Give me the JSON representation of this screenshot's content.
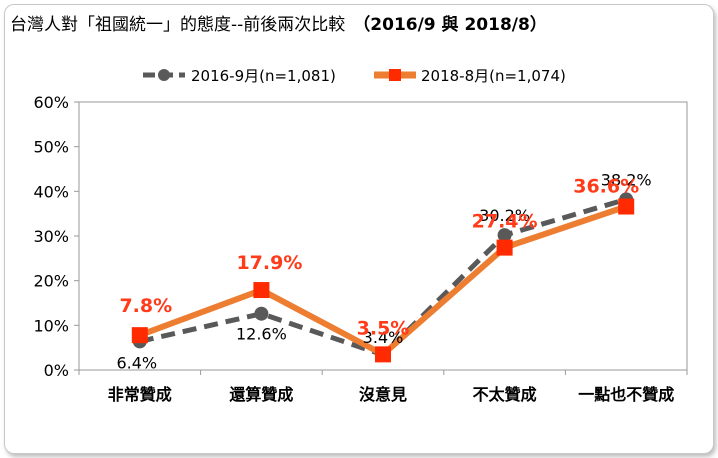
{
  "title": "台灣人對「祖國統一」的態度--前後兩次比較",
  "subtitle": "（2016/9 與 2018/8）",
  "chart_data": {
    "type": "line",
    "categories": [
      "非常贊成",
      "還算贊成",
      "沒意見",
      "不太贊成",
      "一點也不贊成"
    ],
    "ylim": [
      0,
      60
    ],
    "yticks": [
      "0%",
      "10%",
      "20%",
      "30%",
      "40%",
      "50%",
      "60%"
    ],
    "grid": false,
    "legend_position": "top",
    "series": [
      {
        "name": "2016-9月(n=1,081)",
        "values": [
          6.4,
          12.6,
          3.4,
          30.2,
          38.2
        ],
        "labels": [
          "6.4%",
          "12.6%",
          "3.4%",
          "30.2%",
          "38.2%"
        ],
        "color": "#595959",
        "style": "dashed",
        "marker": "circle"
      },
      {
        "name": "2018-8月(n=1,074)",
        "values": [
          7.8,
          17.9,
          3.5,
          27.4,
          36.6
        ],
        "labels": [
          "7.8%",
          "17.9%",
          "3.5%",
          "27.4%",
          "36.6%"
        ],
        "color": "#ed7d31",
        "marker_color": "#ff2a00",
        "label_color": "#ff3b1a",
        "style": "solid",
        "marker": "square"
      }
    ]
  }
}
